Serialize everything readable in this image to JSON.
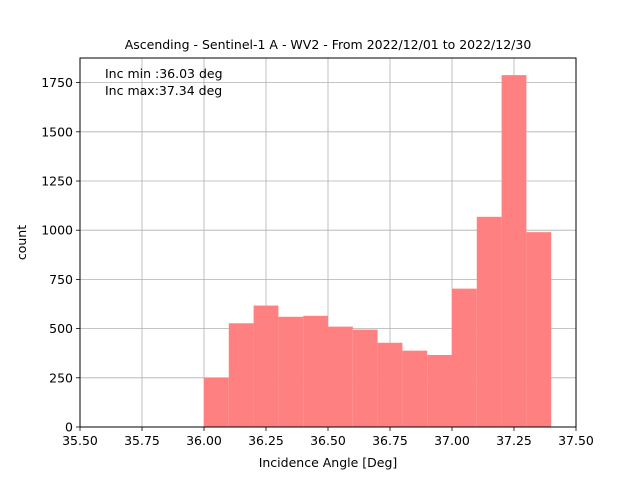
{
  "chart_data": {
    "type": "bar",
    "title": "Ascending - Sentinel-1 A - WV2 - From 2022/12/01 to 2022/12/30",
    "xlabel": "Incidence Angle [Deg]",
    "ylabel": "count",
    "xlim": [
      35.5,
      37.5
    ],
    "ylim": [
      0,
      1875
    ],
    "xticks": [
      35.5,
      35.75,
      36.0,
      36.25,
      36.5,
      36.75,
      37.0,
      37.25,
      37.5
    ],
    "xtick_labels": [
      "35.50",
      "35.75",
      "36.00",
      "36.25",
      "36.50",
      "36.75",
      "37.00",
      "37.25",
      "37.50"
    ],
    "yticks": [
      0,
      250,
      500,
      750,
      1000,
      1250,
      1500,
      1750
    ],
    "ytick_labels": [
      "0",
      "250",
      "500",
      "750",
      "1000",
      "1250",
      "1500",
      "1750"
    ],
    "grid": true,
    "bar_color": "#ff8080",
    "bins": [
      {
        "x0": 36.0,
        "x1": 36.1,
        "value": 250
      },
      {
        "x0": 36.1,
        "x1": 36.2,
        "value": 527
      },
      {
        "x0": 36.2,
        "x1": 36.3,
        "value": 617
      },
      {
        "x0": 36.3,
        "x1": 36.4,
        "value": 560
      },
      {
        "x0": 36.4,
        "x1": 36.5,
        "value": 565
      },
      {
        "x0": 36.5,
        "x1": 36.6,
        "value": 510
      },
      {
        "x0": 36.6,
        "x1": 36.7,
        "value": 495
      },
      {
        "x0": 36.7,
        "x1": 36.8,
        "value": 428
      },
      {
        "x0": 36.8,
        "x1": 36.9,
        "value": 388
      },
      {
        "x0": 36.9,
        "x1": 37.0,
        "value": 366
      },
      {
        "x0": 37.0,
        "x1": 37.1,
        "value": 703
      },
      {
        "x0": 37.1,
        "x1": 37.2,
        "value": 1068
      },
      {
        "x0": 37.2,
        "x1": 37.3,
        "value": 1788
      },
      {
        "x0": 37.3,
        "x1": 37.4,
        "value": 990
      }
    ],
    "annotations": [
      "Inc min :36.03 deg",
      "Inc max:37.34 deg"
    ]
  }
}
